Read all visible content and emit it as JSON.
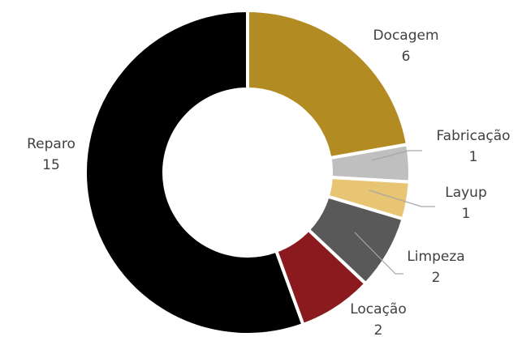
{
  "chart_data": {
    "type": "pie",
    "subtype": "donut",
    "categories": [
      "Docagem",
      "Fabricação",
      "Layup",
      "Limpeza",
      "Locação",
      "Reparo"
    ],
    "values": [
      6,
      1,
      1,
      2,
      2,
      15
    ],
    "value_labels": [
      "6",
      "1",
      "1",
      "2",
      "2",
      "15"
    ],
    "colors": [
      "#b38b23",
      "#bfbfbf",
      "#e8c572",
      "#595959",
      "#8b1a1f",
      "#000000"
    ],
    "start": "top",
    "direction": "clockwise",
    "legend": "none",
    "data_labels": "outside, category name above value, leader lines for small slices"
  }
}
